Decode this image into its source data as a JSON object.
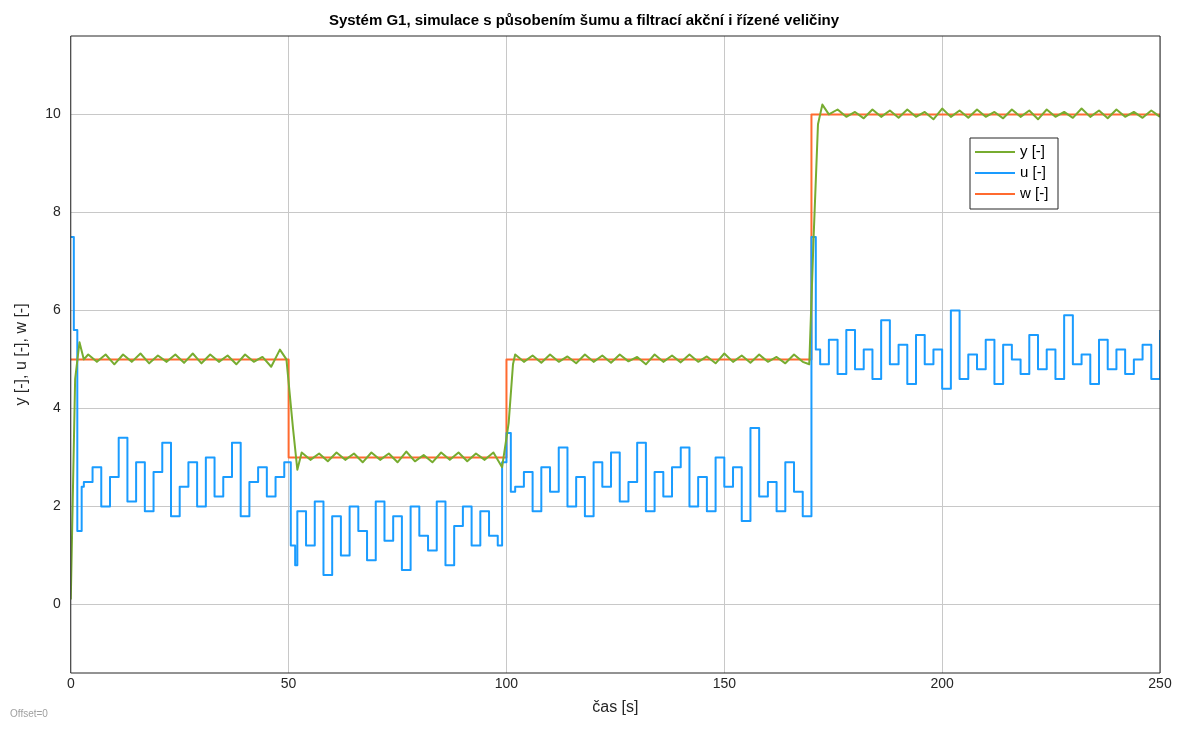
{
  "chart_data": {
    "type": "line",
    "title": "Systém G1, simulace s působením šumu a filtrací akční i řízené veličiny",
    "xlabel": "čas [s]",
    "ylabel": "y [-], u [-], w [-]",
    "xlim": [
      0,
      250
    ],
    "xticks": [
      0,
      50,
      100,
      150,
      200,
      250
    ],
    "ylim": [
      -1.4,
      11.6
    ],
    "yticks": [
      0,
      2,
      4,
      6,
      8,
      10
    ],
    "grid": true,
    "legend": "top right",
    "annotations": [
      "Offset=0"
    ],
    "series": [
      {
        "name": "y [-]",
        "color": "#77ac30",
        "x": [
          0,
          1,
          2,
          3,
          4,
          6,
          8,
          10,
          12,
          14,
          16,
          18,
          20,
          22,
          24,
          26,
          28,
          30,
          32,
          34,
          36,
          38,
          40,
          42,
          44,
          46,
          48,
          49.5,
          51,
          52,
          53,
          55,
          57,
          59,
          61,
          63,
          65,
          67,
          69,
          71,
          73,
          75,
          77,
          79,
          81,
          83,
          85,
          87,
          89,
          91,
          93,
          95,
          97,
          99,
          100.5,
          101.5,
          102,
          104,
          106,
          108,
          110,
          112,
          114,
          116,
          118,
          120,
          122,
          124,
          126,
          128,
          130,
          132,
          134,
          136,
          138,
          140,
          142,
          144,
          146,
          148,
          150,
          152,
          154,
          156,
          158,
          160,
          162,
          164,
          166,
          168,
          169.5,
          170.5,
          171.5,
          172.5,
          174,
          176,
          178,
          180,
          182,
          184,
          186,
          188,
          190,
          192,
          194,
          196,
          198,
          200,
          202,
          204,
          206,
          208,
          210,
          212,
          214,
          216,
          218,
          220,
          222,
          224,
          226,
          228,
          230,
          232,
          234,
          236,
          238,
          240,
          242,
          244,
          246,
          248,
          250
        ],
        "values": [
          0.1,
          4.6,
          5.35,
          5.0,
          5.1,
          4.95,
          5.1,
          4.9,
          5.1,
          4.95,
          5.12,
          4.92,
          5.08,
          4.95,
          5.1,
          4.93,
          5.12,
          4.92,
          5.1,
          4.95,
          5.08,
          4.9,
          5.1,
          4.95,
          5.05,
          4.85,
          5.2,
          5.0,
          3.6,
          2.75,
          3.1,
          2.95,
          3.08,
          2.92,
          3.1,
          2.95,
          3.08,
          2.9,
          3.1,
          2.95,
          3.08,
          2.9,
          3.12,
          2.92,
          3.05,
          2.9,
          3.1,
          2.95,
          3.1,
          2.92,
          3.08,
          2.95,
          3.1,
          2.8,
          3.7,
          4.9,
          5.1,
          4.95,
          5.08,
          4.93,
          5.1,
          4.95,
          5.06,
          4.92,
          5.1,
          4.95,
          5.08,
          4.93,
          5.1,
          4.96,
          5.05,
          4.9,
          5.1,
          4.95,
          5.08,
          4.94,
          5.1,
          4.95,
          5.06,
          4.92,
          5.12,
          4.95,
          5.08,
          4.93,
          5.1,
          4.95,
          5.05,
          4.92,
          5.1,
          4.95,
          4.9,
          7.5,
          9.8,
          10.2,
          10.0,
          10.1,
          9.95,
          10.05,
          9.92,
          10.1,
          9.95,
          10.08,
          9.93,
          10.1,
          9.95,
          10.05,
          9.9,
          10.12,
          9.95,
          10.08,
          9.93,
          10.1,
          9.95,
          10.05,
          9.92,
          10.1,
          9.95,
          10.08,
          9.9,
          10.1,
          9.95,
          10.05,
          9.93,
          10.12,
          9.95,
          10.08,
          9.92,
          10.1,
          9.95,
          10.05,
          9.93,
          10.08,
          9.95
        ]
      },
      {
        "name": "u [-]",
        "color": "#1a9cff",
        "type": "step",
        "x": [
          0,
          0.7,
          1.5,
          2.5,
          3,
          5,
          7,
          9,
          11,
          13,
          15,
          17,
          19,
          21,
          23,
          25,
          27,
          29,
          31,
          33,
          35,
          37,
          39,
          41,
          43,
          45,
          47,
          49,
          50.5,
          51.5,
          52,
          54,
          56,
          58,
          60,
          62,
          64,
          66,
          68,
          70,
          72,
          74,
          76,
          78,
          80,
          82,
          84,
          86,
          88,
          90,
          92,
          94,
          96,
          98,
          99,
          100,
          101,
          102,
          104,
          106,
          108,
          110,
          112,
          114,
          116,
          118,
          120,
          122,
          124,
          126,
          128,
          130,
          132,
          134,
          136,
          138,
          140,
          142,
          144,
          146,
          148,
          150,
          152,
          154,
          156,
          158,
          160,
          162,
          164,
          166,
          168,
          169.5,
          170,
          171,
          172,
          174,
          176,
          178,
          180,
          182,
          184,
          186,
          188,
          190,
          192,
          194,
          196,
          198,
          200,
          202,
          204,
          206,
          208,
          210,
          212,
          214,
          216,
          218,
          220,
          222,
          224,
          226,
          228,
          230,
          232,
          234,
          236,
          238,
          240,
          242,
          244,
          246,
          248,
          250
        ],
        "values": [
          7.5,
          5.6,
          1.5,
          2.4,
          2.5,
          2.8,
          2.0,
          2.6,
          3.4,
          2.1,
          2.9,
          1.9,
          2.7,
          3.3,
          1.8,
          2.4,
          2.9,
          2.0,
          3.0,
          2.2,
          2.6,
          3.3,
          1.8,
          2.5,
          2.8,
          2.2,
          2.6,
          2.9,
          1.2,
          0.8,
          1.9,
          1.2,
          2.1,
          0.6,
          1.8,
          1.0,
          2.0,
          1.5,
          0.9,
          2.1,
          1.3,
          1.8,
          0.7,
          2.0,
          1.4,
          1.1,
          2.1,
          0.8,
          1.6,
          2.0,
          1.2,
          1.9,
          1.4,
          1.2,
          2.9,
          3.5,
          2.3,
          2.4,
          2.7,
          1.9,
          2.8,
          2.3,
          3.2,
          2.0,
          2.6,
          1.8,
          2.9,
          2.4,
          3.1,
          2.1,
          2.5,
          3.3,
          1.9,
          2.7,
          2.2,
          2.8,
          3.2,
          2.0,
          2.6,
          1.9,
          3.0,
          2.4,
          2.8,
          1.7,
          3.6,
          2.2,
          2.5,
          1.9,
          2.9,
          2.3,
          1.8,
          1.8,
          7.5,
          5.2,
          4.9,
          5.4,
          4.7,
          5.6,
          4.8,
          5.2,
          4.6,
          5.8,
          4.9,
          5.3,
          4.5,
          5.5,
          4.9,
          5.2,
          4.4,
          6.0,
          4.6,
          5.1,
          4.8,
          5.4,
          4.5,
          5.3,
          5.0,
          4.7,
          5.5,
          4.8,
          5.2,
          4.6,
          5.9,
          4.9,
          5.1,
          4.5,
          5.4,
          4.8,
          5.2,
          4.7,
          5.0,
          5.3,
          4.6,
          5.6
        ]
      },
      {
        "name": "w [-]",
        "color": "#ff6a2f",
        "x": [
          0,
          50,
          50,
          100,
          100,
          170,
          170,
          250
        ],
        "values": [
          5,
          5,
          3,
          3,
          5,
          5,
          10,
          10
        ]
      }
    ]
  }
}
